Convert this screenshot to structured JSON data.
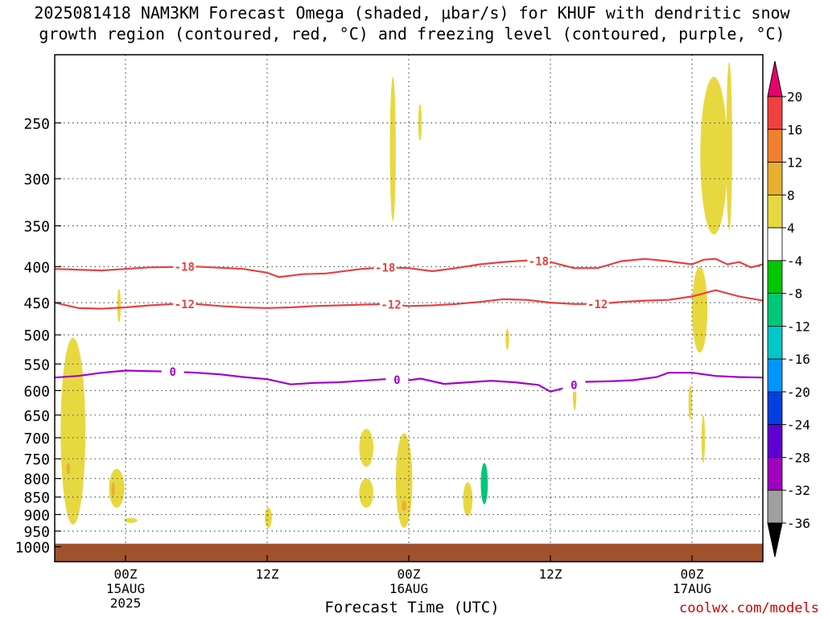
{
  "title_line1": "2025081418 NAM3KM Forecast Omega (shaded, μbar/s) for KHUF with dendritic snow",
  "title_line2": "growth region (contoured, red, °C) and freezing level (contoured, purple, °C)",
  "credit": "coolwx.com/models",
  "chart_data": {
    "type": "area",
    "title": "2025081418 NAM3KM Forecast Omega (shaded, μbar/s) for KHUF with dendritic snow growth region (contoured, red, °C) and freezing level (contoured, purple, °C)",
    "xlabel": "Forecast Time (UTC)",
    "ylabel": "",
    "grid": true,
    "x_ticks": [
      {
        "hour": 6,
        "label": "00Z",
        "sub": [
          "15AUG",
          "2025"
        ]
      },
      {
        "hour": 18,
        "label": "12Z",
        "sub": []
      },
      {
        "hour": 30,
        "label": "00Z",
        "sub": [
          "16AUG"
        ]
      },
      {
        "hour": 42,
        "label": "12Z",
        "sub": []
      },
      {
        "hour": 54,
        "label": "00Z",
        "sub": [
          "17AUG"
        ]
      }
    ],
    "xlim": [
      0,
      60
    ],
    "ylim": [
      1050,
      200
    ],
    "y_ticks": [
      250,
      300,
      350,
      400,
      450,
      500,
      550,
      600,
      650,
      700,
      750,
      800,
      850,
      900,
      950,
      1000
    ],
    "ground_level_hpa": 990,
    "colorbar": {
      "levels": [
        20,
        16,
        12,
        8,
        4,
        -4,
        -8,
        -12,
        -16,
        -20,
        -24,
        -28,
        -32,
        -36
      ],
      "colors": [
        "#e8006e",
        "#f04040",
        "#f08030",
        "#e8b030",
        "#e8d840",
        "#ffffff",
        "#00c800",
        "#00c878",
        "#00c8c8",
        "#0096ff",
        "#0040e0",
        "#6000d0",
        "#a000c0",
        "#a0a0a0",
        "#000000"
      ]
    },
    "contours": [
      {
        "level": "-18",
        "color": "#e84040",
        "label_hours": [
          11,
          28,
          41
        ],
        "points": [
          [
            0,
            403
          ],
          [
            4,
            405
          ],
          [
            8,
            401
          ],
          [
            12,
            400
          ],
          [
            16,
            403
          ],
          [
            18,
            408
          ],
          [
            19,
            414
          ],
          [
            21,
            410
          ],
          [
            23,
            409
          ],
          [
            26,
            403
          ],
          [
            28,
            401
          ],
          [
            30,
            402
          ],
          [
            32,
            406
          ],
          [
            34,
            402
          ],
          [
            36,
            397
          ],
          [
            38,
            394
          ],
          [
            40,
            392
          ],
          [
            42,
            394
          ],
          [
            44,
            402
          ],
          [
            46,
            402
          ],
          [
            48,
            393
          ],
          [
            50,
            390
          ],
          [
            52,
            393
          ],
          [
            54,
            397
          ],
          [
            55,
            391
          ],
          [
            56,
            390
          ],
          [
            57,
            397
          ],
          [
            58,
            394
          ],
          [
            59,
            401
          ],
          [
            60,
            397
          ]
        ]
      },
      {
        "level": "-12",
        "color": "#e84040",
        "label_hours": [
          11,
          28.5,
          46
        ],
        "points": [
          [
            0,
            450
          ],
          [
            2,
            458
          ],
          [
            4,
            459
          ],
          [
            6,
            457
          ],
          [
            8,
            454
          ],
          [
            10,
            452
          ],
          [
            12,
            452
          ],
          [
            14,
            455
          ],
          [
            16,
            457
          ],
          [
            18,
            458
          ],
          [
            20,
            457
          ],
          [
            22,
            455
          ],
          [
            24,
            454
          ],
          [
            26,
            453
          ],
          [
            28,
            452
          ],
          [
            30,
            455
          ],
          [
            32,
            454
          ],
          [
            34,
            452
          ],
          [
            36,
            449
          ],
          [
            38,
            445
          ],
          [
            40,
            446
          ],
          [
            42,
            450
          ],
          [
            44,
            452
          ],
          [
            46,
            452
          ],
          [
            48,
            449
          ],
          [
            50,
            447
          ],
          [
            52,
            446
          ],
          [
            54,
            441
          ],
          [
            56,
            432
          ],
          [
            58,
            441
          ],
          [
            60,
            447
          ]
        ]
      },
      {
        "level": "0",
        "color": "#a000c8",
        "label_hours": [
          10,
          29,
          44
        ],
        "points": [
          [
            0,
            575
          ],
          [
            2,
            572
          ],
          [
            4,
            566
          ],
          [
            6,
            562
          ],
          [
            8,
            563
          ],
          [
            10,
            564
          ],
          [
            12,
            566
          ],
          [
            14,
            569
          ],
          [
            16,
            574
          ],
          [
            18,
            578
          ],
          [
            20,
            588
          ],
          [
            22,
            585
          ],
          [
            24,
            584
          ],
          [
            26,
            581
          ],
          [
            28,
            578
          ],
          [
            30,
            580
          ],
          [
            31,
            577
          ],
          [
            33,
            587
          ],
          [
            35,
            584
          ],
          [
            37,
            581
          ],
          [
            39,
            584
          ],
          [
            41,
            589
          ],
          [
            42,
            602
          ],
          [
            43,
            596
          ],
          [
            45,
            583
          ],
          [
            47,
            582
          ],
          [
            49,
            580
          ],
          [
            51,
            574
          ],
          [
            52,
            566
          ],
          [
            54,
            566
          ],
          [
            56,
            572
          ],
          [
            58,
            574
          ],
          [
            60,
            575
          ]
        ]
      }
    ],
    "omega_regions": [
      {
        "value": 4,
        "hour_range": [
          28.4,
          28.9
        ],
        "p_range": [
          215,
          345
        ]
      },
      {
        "value": 4,
        "hour_range": [
          30.8,
          31.1
        ],
        "p_range": [
          235,
          265
        ]
      },
      {
        "value": -4,
        "hour_range": [
          31.6,
          31.8
        ],
        "p_range": [
          260,
          292
        ]
      },
      {
        "value": 4,
        "hour_range": [
          54.7,
          57.0
        ],
        "p_range": [
          215,
          360
        ]
      },
      {
        "value": 4,
        "hour_range": [
          56.9,
          57.4
        ],
        "p_range": [
          205,
          355
        ]
      },
      {
        "value": 4,
        "hour_range": [
          54.0,
          55.3
        ],
        "p_range": [
          400,
          530
        ]
      },
      {
        "value": -4,
        "hour_range": [
          56.6,
          57.3
        ],
        "p_range": [
          440,
          490
        ]
      },
      {
        "value": -4,
        "hour_range": [
          57.7,
          58.2
        ],
        "p_range": [
          480,
          530
        ]
      },
      {
        "value": 4,
        "hour_range": [
          5.3,
          5.6
        ],
        "p_range": [
          430,
          480
        ]
      },
      {
        "value": -4,
        "hour_range": [
          37.4,
          37.9
        ],
        "p_range": [
          475,
          520
        ]
      },
      {
        "value": 4,
        "hour_range": [
          38.2,
          38.5
        ],
        "p_range": [
          490,
          525
        ]
      },
      {
        "value": -4,
        "hour_range": [
          30.7,
          31.0
        ],
        "p_range": [
          545,
          590
        ]
      },
      {
        "value": 4,
        "hour_range": [
          53.7,
          54.0
        ],
        "p_range": [
          590,
          660
        ]
      },
      {
        "value": 4,
        "hour_range": [
          43.9,
          44.2
        ],
        "p_range": [
          585,
          640
        ]
      },
      {
        "value": 4,
        "hour_range": [
          54.8,
          55.1
        ],
        "p_range": [
          650,
          760
        ]
      },
      {
        "value": 4,
        "hour_range": [
          0.5,
          2.6
        ],
        "p_range": [
          505,
          930
        ]
      },
      {
        "value": 8,
        "hour_range": [
          1.0,
          1.3
        ],
        "p_range": [
          760,
          790
        ]
      },
      {
        "value": 4,
        "hour_range": [
          4.6,
          5.9
        ],
        "p_range": [
          775,
          880
        ]
      },
      {
        "value": 8,
        "hour_range": [
          4.8,
          5.1
        ],
        "p_range": [
          810,
          850
        ]
      },
      {
        "value": 4,
        "hour_range": [
          5.9,
          7.0
        ],
        "p_range": [
          910,
          925
        ]
      },
      {
        "value": -4,
        "hour_range": [
          3.4,
          4.5
        ],
        "p_range": [
          850,
          960
        ]
      },
      {
        "value": 4,
        "hour_range": [
          17.8,
          18.4
        ],
        "p_range": [
          880,
          940
        ]
      },
      {
        "value": -4,
        "hour_range": [
          23.6,
          24.1
        ],
        "p_range": [
          870,
          920
        ]
      },
      {
        "value": 4,
        "hour_range": [
          25.8,
          27.0
        ],
        "p_range": [
          680,
          770
        ]
      },
      {
        "value": 4,
        "hour_range": [
          25.8,
          27.0
        ],
        "p_range": [
          800,
          880
        ]
      },
      {
        "value": 4,
        "hour_range": [
          28.9,
          30.3
        ],
        "p_range": [
          690,
          940
        ]
      },
      {
        "value": 8,
        "hour_range": [
          29.4,
          29.8
        ],
        "p_range": [
          860,
          890
        ]
      },
      {
        "value": 4,
        "hour_range": [
          34.6,
          35.4
        ],
        "p_range": [
          810,
          905
        ]
      },
      {
        "value": -4,
        "hour_range": [
          35.6,
          37.2
        ],
        "p_range": [
          700,
          920
        ]
      },
      {
        "value": -12,
        "hour_range": [
          36.1,
          36.7
        ],
        "p_range": [
          760,
          870
        ]
      },
      {
        "value": -4,
        "hour_range": [
          41.7,
          46.9
        ],
        "p_range": [
          820,
          940
        ]
      },
      {
        "value": -4,
        "hour_range": [
          45.1,
          46.9
        ],
        "p_range": [
          790,
          850
        ]
      }
    ]
  }
}
